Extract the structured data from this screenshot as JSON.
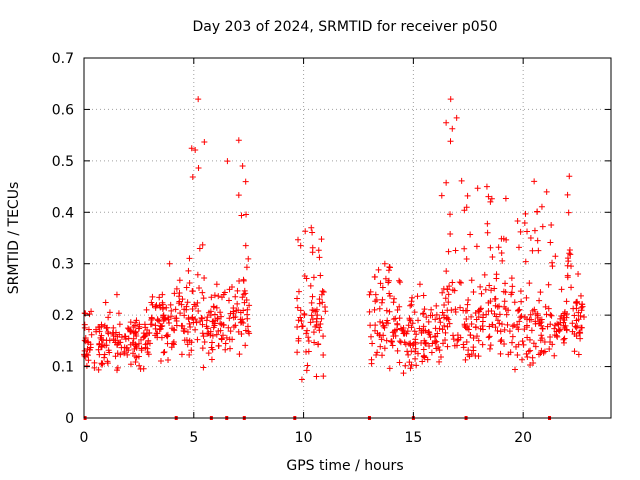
{
  "chart_data": {
    "type": "scatter",
    "title": "Day 203 of 2024, SRMTID for receiver p050",
    "xlabel": "GPS time / hours",
    "ylabel": "SRMTID / TECUs",
    "xlim": [
      0,
      24
    ],
    "ylim": [
      0,
      0.7
    ],
    "x_ticks": [
      0,
      5,
      10,
      15,
      20
    ],
    "x_tick_labels": [
      "0",
      "5",
      "10",
      "15",
      "20"
    ],
    "y_ticks": [
      0,
      0.1,
      0.2,
      0.3,
      0.4,
      0.5,
      0.6,
      0.7
    ],
    "y_tick_labels": [
      "0",
      "0.1",
      "0.2",
      "0.3",
      "0.4",
      "0.5",
      "0.6",
      "0.7"
    ],
    "grid": true,
    "marker": "+",
    "color": "#ff0000",
    "clusters": [
      {
        "start": 0.0,
        "end": 3.0,
        "low": 0.06,
        "high": 0.24,
        "peak": 0.24
      },
      {
        "start": 3.0,
        "end": 4.8,
        "low": 0.08,
        "high": 0.3,
        "peak": 0.3
      },
      {
        "start": 4.8,
        "end": 5.6,
        "low": 0.09,
        "high": 0.62,
        "peak": 0.62
      },
      {
        "start": 5.6,
        "end": 6.5,
        "low": 0.1,
        "high": 0.26,
        "peak": 0.26
      },
      {
        "start": 6.5,
        "end": 7.6,
        "low": 0.09,
        "high": 0.54,
        "peak": 0.54
      },
      {
        "start": 9.7,
        "end": 11.0,
        "low": 0.06,
        "high": 0.37,
        "peak": 0.37
      },
      {
        "start": 13.0,
        "end": 14.4,
        "low": 0.07,
        "high": 0.3,
        "peak": 0.3
      },
      {
        "start": 14.4,
        "end": 16.2,
        "low": 0.07,
        "high": 0.26,
        "peak": 0.26
      },
      {
        "start": 16.2,
        "end": 17.2,
        "low": 0.08,
        "high": 0.62,
        "peak": 0.62
      },
      {
        "start": 17.2,
        "end": 19.5,
        "low": 0.08,
        "high": 0.45,
        "peak": 0.45
      },
      {
        "start": 19.5,
        "end": 21.5,
        "low": 0.06,
        "high": 0.46,
        "peak": 0.46
      },
      {
        "start": 21.5,
        "end": 22.0,
        "low": 0.11,
        "high": 0.25,
        "peak": 0.25
      },
      {
        "start": 22.0,
        "end": 22.2,
        "low": 0.2,
        "high": 0.47,
        "peak": 0.47
      },
      {
        "start": 22.2,
        "end": 22.8,
        "low": 0.11,
        "high": 0.28,
        "peak": 0.28
      }
    ],
    "zero_markers": [
      0.05,
      4.2,
      5.8,
      6.5,
      7.3,
      9.6,
      13.0,
      15.0,
      17.4,
      21.2
    ]
  }
}
